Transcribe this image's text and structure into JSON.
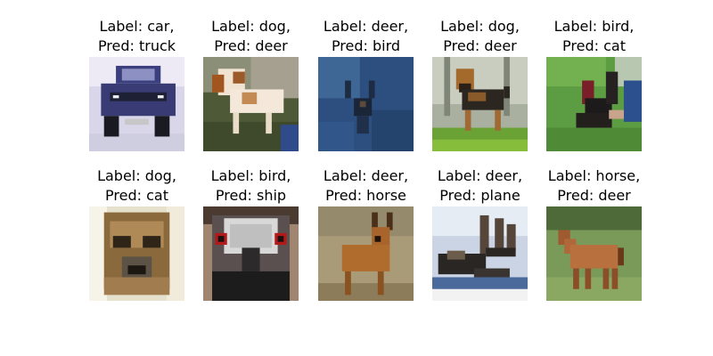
{
  "grid": {
    "items": [
      {
        "label_line": "Label: car,",
        "pred_line": "Pred: truck",
        "subject": "car-image"
      },
      {
        "label_line": "Label: dog,",
        "pred_line": "Pred: deer",
        "subject": "dog-image"
      },
      {
        "label_line": "Label: deer,",
        "pred_line": "Pred: bird",
        "subject": "deer-image"
      },
      {
        "label_line": "Label: dog,",
        "pred_line": "Pred: deer",
        "subject": "dog-image"
      },
      {
        "label_line": "Label: bird,",
        "pred_line": "Pred: cat",
        "subject": "bird-image"
      },
      {
        "label_line": "Label: dog,",
        "pred_line": "Pred: cat",
        "subject": "dog-image"
      },
      {
        "label_line": "Label: bird,",
        "pred_line": "Pred: ship",
        "subject": "bird-image"
      },
      {
        "label_line": "Label: deer,",
        "pred_line": "Pred: horse",
        "subject": "deer-image"
      },
      {
        "label_line": "Label: deer,",
        "pred_line": "Pred: plane",
        "subject": "deer-image"
      },
      {
        "label_line": "Label: horse,",
        "pred_line": "Pred: deer",
        "subject": "horse-image"
      }
    ]
  }
}
